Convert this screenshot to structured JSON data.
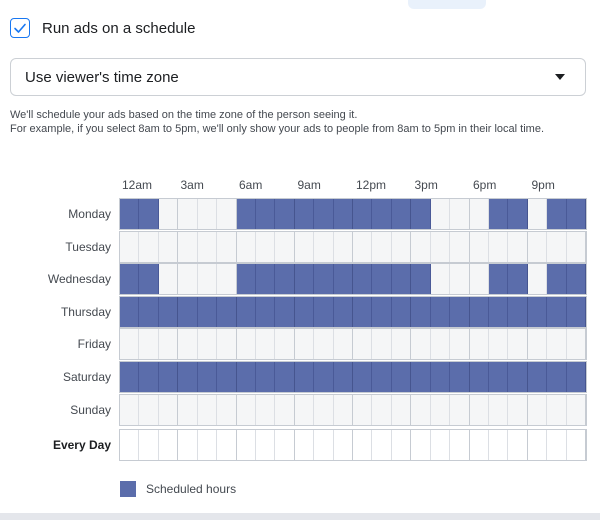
{
  "schedule_toggle": {
    "label": "Run ads on a schedule",
    "checked": true
  },
  "timezone_select": {
    "value": "Use viewer's time zone"
  },
  "description": {
    "line1": "We'll schedule your ads based on the time zone of the person seeing it.",
    "line2": "For example, if you select 8am to 5pm, we'll only show your ads to people from 8am to 5pm in their local time."
  },
  "hour_labels": [
    "12am",
    "3am",
    "6am",
    "9am",
    "12pm",
    "3pm",
    "6pm",
    "9pm"
  ],
  "days": [
    {
      "label": "Monday",
      "hours": [
        0,
        1,
        6,
        7,
        8,
        9,
        10,
        11,
        12,
        13,
        14,
        15,
        19,
        20,
        22,
        23
      ]
    },
    {
      "label": "Tuesday",
      "hours": []
    },
    {
      "label": "Wednesday",
      "hours": [
        0,
        1,
        6,
        7,
        8,
        9,
        10,
        11,
        12,
        13,
        14,
        15,
        19,
        20,
        22,
        23
      ]
    },
    {
      "label": "Thursday",
      "hours": [
        0,
        1,
        2,
        3,
        4,
        5,
        6,
        7,
        8,
        9,
        10,
        11,
        12,
        13,
        14,
        15,
        16,
        17,
        18,
        19,
        20,
        21,
        22,
        23
      ]
    },
    {
      "label": "Friday",
      "hours": []
    },
    {
      "label": "Saturday",
      "hours": [
        0,
        1,
        2,
        3,
        4,
        5,
        6,
        7,
        8,
        9,
        10,
        11,
        12,
        13,
        14,
        15,
        16,
        17,
        18,
        19,
        20,
        21,
        22,
        23
      ]
    },
    {
      "label": "Sunday",
      "hours": []
    }
  ],
  "every_day": {
    "label": "Every Day",
    "hours": []
  },
  "legend": {
    "label": "Scheduled hours"
  },
  "colors": {
    "scheduled": "#5b6dab",
    "unscheduled": "#f5f6f7",
    "accent": "#1877f2"
  }
}
